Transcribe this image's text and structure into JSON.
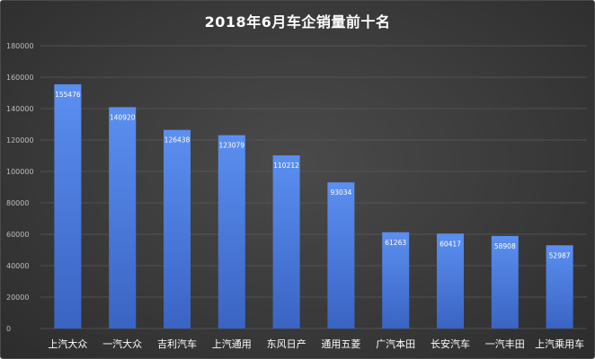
{
  "chart_data": {
    "type": "bar",
    "title": "2018年6月车企销量前十名",
    "categories": [
      "上汽大众",
      "一汽大众",
      "吉利汽车",
      "上汽通用",
      "东风日产",
      "通用五菱",
      "广汽本田",
      "长安汽车",
      "一汽丰田",
      "上汽乘用车"
    ],
    "values": [
      155476,
      140920,
      126438,
      123079,
      110212,
      93034,
      61263,
      60417,
      58908,
      52987
    ],
    "data_labels": [
      "155476",
      "140920",
      "126438",
      "123079",
      "110212",
      "93034",
      "61263",
      "60417",
      "58908",
      "52987"
    ],
    "ylim": [
      0,
      180000
    ],
    "y_ticks": [
      0,
      20000,
      40000,
      60000,
      80000,
      100000,
      120000,
      140000,
      160000,
      180000
    ],
    "y_tick_labels": [
      "0",
      "20000",
      "40000",
      "60000",
      "80000",
      "100000",
      "120000",
      "140000",
      "160000",
      "180000"
    ],
    "grid": true,
    "xlabel": "",
    "ylabel": "",
    "bar_color": "#3f6fd0",
    "bar_color_light": "#5b8ff0",
    "background_color": "#3a3a3a"
  }
}
